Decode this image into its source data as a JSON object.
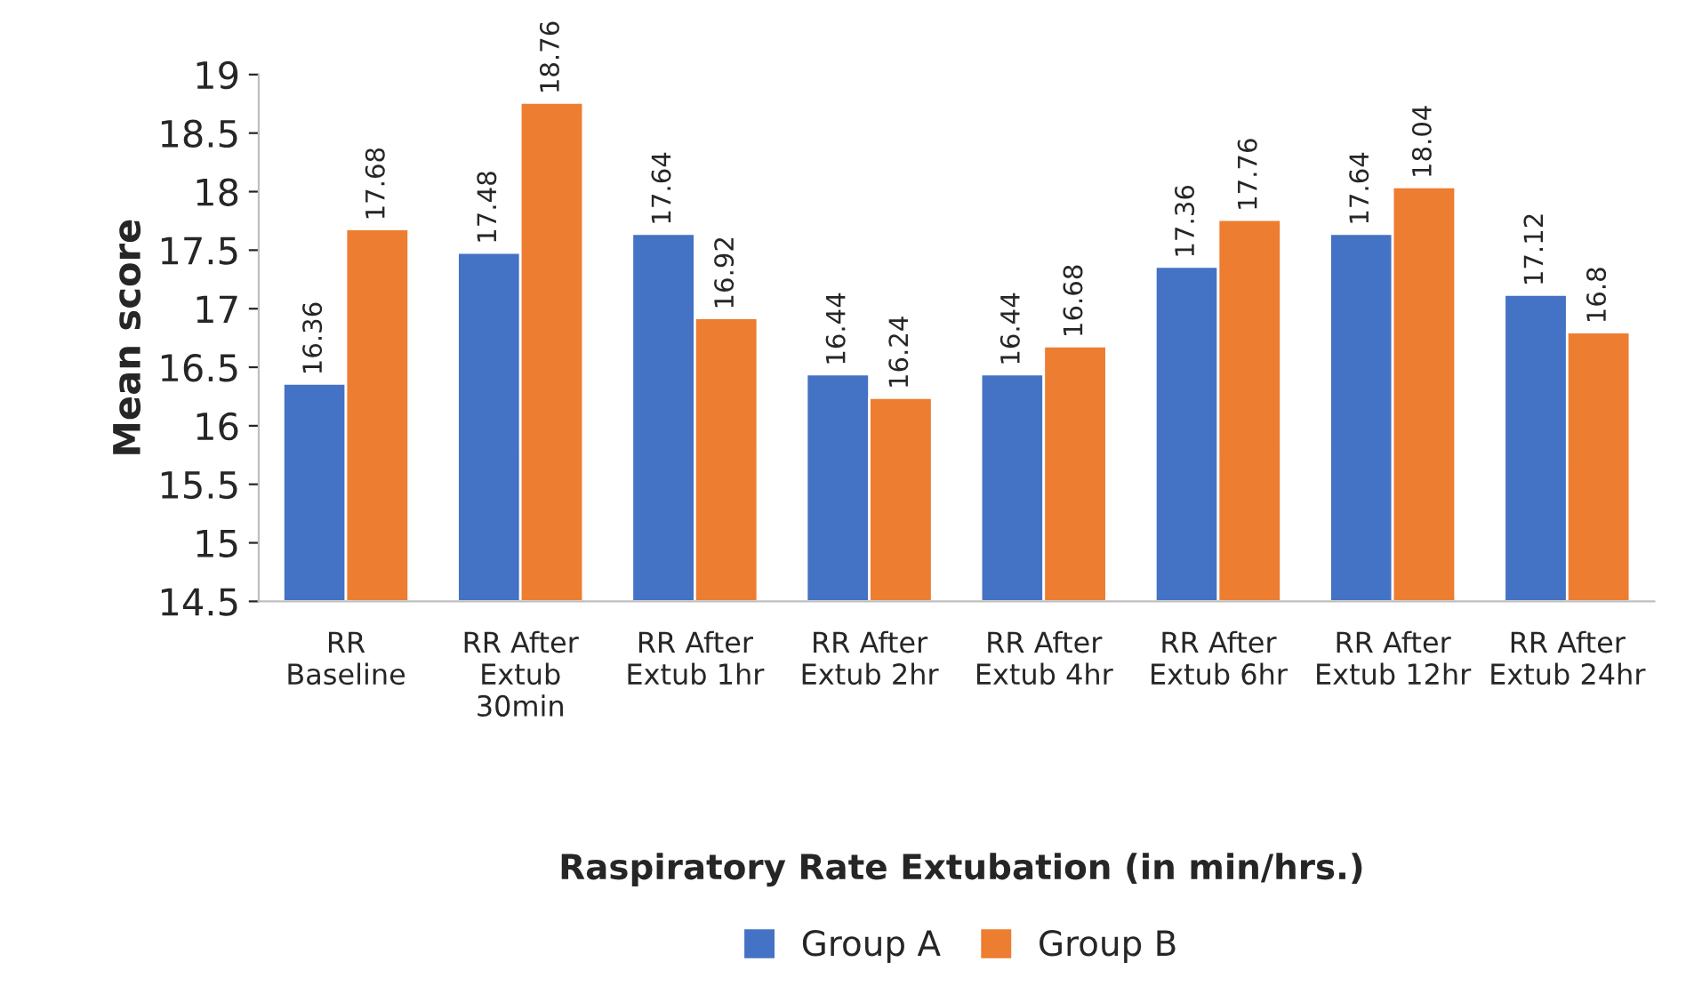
{
  "chart_data": {
    "type": "bar",
    "ylabel": "Mean score",
    "xlabel": "Raspiratory Rate Extubation (in min/hrs.)",
    "categories": [
      "RR\nBaseline",
      "RR After\nExtub\n30min",
      "RR After\nExtub 1hr",
      "RR After\nExtub 2hr",
      "RR After\nExtub 4hr",
      "RR After\nExtub 6hr",
      "RR After\nExtub 12hr",
      "RR After\nExtub 24hr"
    ],
    "series": [
      {
        "name": "Group A",
        "color": "#4472c4",
        "values": [
          16.36,
          17.48,
          17.64,
          16.44,
          16.44,
          17.36,
          17.64,
          17.12
        ]
      },
      {
        "name": "Group B",
        "color": "#ed7d31",
        "values": [
          17.68,
          18.76,
          16.92,
          16.24,
          16.68,
          17.76,
          18.04,
          16.8
        ]
      }
    ],
    "ylim": [
      14.5,
      19
    ],
    "yticks": [
      14.5,
      15,
      15.5,
      16,
      16.5,
      17,
      17.5,
      18,
      18.5,
      19
    ],
    "data_labels": true,
    "grid": false,
    "legend": "bottom"
  }
}
